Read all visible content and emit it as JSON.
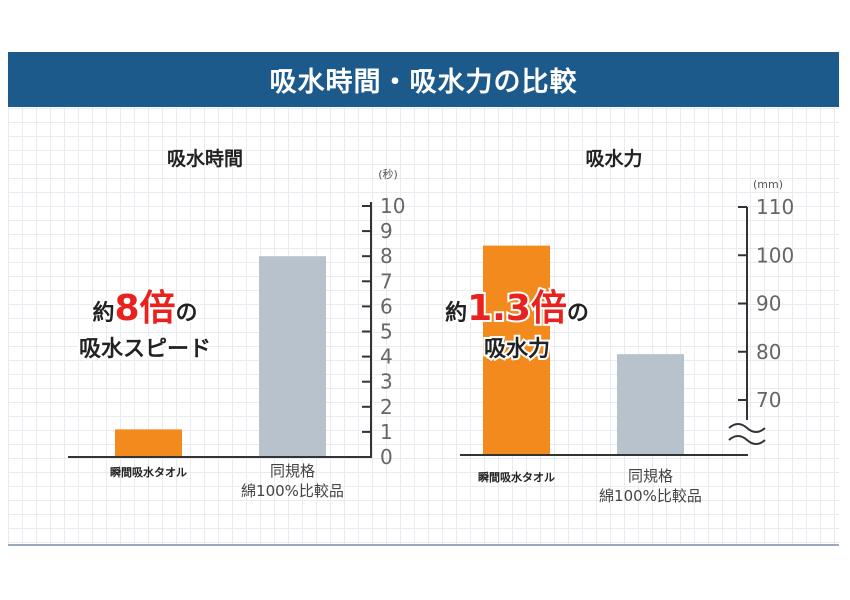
{
  "banner_title": "吸水時間・吸水力の比較",
  "chart_data": [
    {
      "type": "bar",
      "title": "吸水時間",
      "unit": "(秒)",
      "categories": [
        "瞬間吸水タオル",
        "同規格\n綿100%比較品"
      ],
      "values": [
        1.1,
        8.0
      ],
      "colors": [
        "#f28a1e",
        "#b8c2cc"
      ],
      "ylim": [
        0,
        10
      ],
      "yticks": [
        0,
        1,
        2,
        3,
        4,
        5,
        6,
        7,
        8,
        9,
        10
      ],
      "annotation": {
        "prefix": "約",
        "highlight": "8倍",
        "suffix": "の",
        "line2": "吸水スピード"
      }
    },
    {
      "type": "bar",
      "title": "吸水力",
      "unit": "(mm)",
      "categories": [
        "瞬間吸水タオル",
        "同規格\n綿100%比較品"
      ],
      "values": [
        102,
        79.5
      ],
      "colors": [
        "#f28a1e",
        "#b8c2cc"
      ],
      "ylim": [
        70,
        110
      ],
      "yticks": [
        70,
        80,
        90,
        100,
        110
      ],
      "axis_break": true,
      "annotation": {
        "prefix": "約",
        "highlight": "1.3倍",
        "suffix": "の",
        "line2": "吸水力"
      }
    }
  ]
}
